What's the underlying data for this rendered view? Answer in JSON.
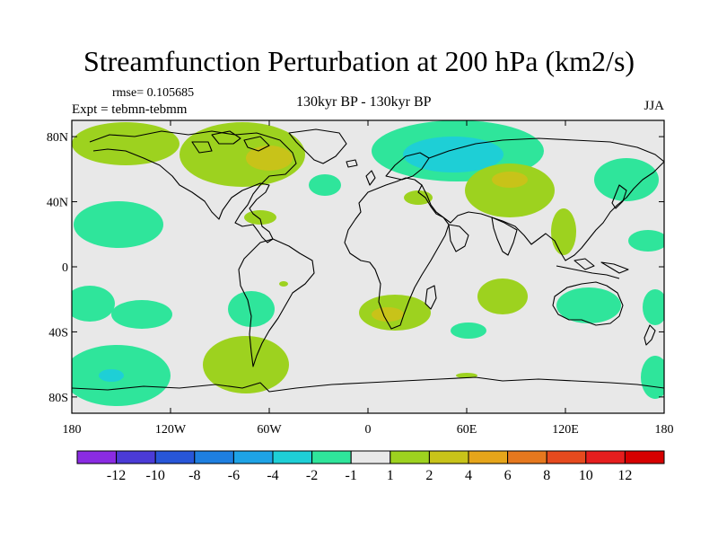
{
  "title": "Streamfunction Perturbation at 200 hPa (km2/s)",
  "rmse": "rmse= 0.105685",
  "expt": "Expt = tebmn-tebmm",
  "center_label": "130kyr BP - 130kyr BP",
  "season": "JJA",
  "colors": {
    "land_bg": "#e8e8e8",
    "coast": "#000000",
    "pos1": "#9dd21f",
    "pos2": "#c8c319",
    "neg1": "#2fe59b",
    "neg2": "#1ecfd6",
    "neg3": "#1ea3e6"
  },
  "map": {
    "lat_ticks": [
      "80N",
      "40N",
      "0",
      "40S",
      "80S"
    ],
    "lon_ticks": [
      "180",
      "120W",
      "60W",
      "0",
      "60E",
      "120E",
      "180"
    ],
    "lat_values": [
      80,
      40,
      0,
      -40,
      -80
    ],
    "lon_values": [
      -180,
      -120,
      -60,
      0,
      60,
      120,
      180
    ]
  },
  "colorbar": {
    "labels": [
      "-12",
      "-10",
      "-8",
      "-6",
      "-4",
      "-2",
      "-1",
      "1",
      "2",
      "4",
      "6",
      "8",
      "10",
      "12"
    ],
    "colors": [
      "#8a2be2",
      "#4b3bd6",
      "#2856d8",
      "#1e7fe0",
      "#1ea3e6",
      "#1ecfd6",
      "#2fe59b",
      "#e8e8e8",
      "#9dd21f",
      "#c8c319",
      "#e6a51a",
      "#e6781e",
      "#e64a1e",
      "#e61e1e",
      "#d60000"
    ]
  }
}
